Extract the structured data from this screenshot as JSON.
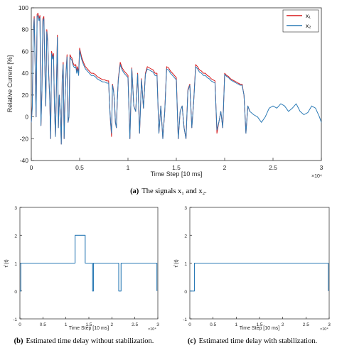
{
  "chart_data": [
    {
      "type": "line",
      "caption_label": "(a)",
      "caption": "The signals x₁ and x₂.",
      "xlabel": "Time Step [10 ms]",
      "ylabel": "Relative Current [%]",
      "x_exponent": "×10⁴",
      "xlim": [
        0,
        3
      ],
      "ylim": [
        -40,
        100
      ],
      "xticks": [
        "0",
        "0.5",
        "1",
        "1.5",
        "2",
        "2.5",
        "3"
      ],
      "yticks": [
        "100",
        "80",
        "60",
        "40",
        "20",
        "0",
        "-20",
        "-40"
      ],
      "legend_position": "top-right",
      "series": [
        {
          "name": "x₁",
          "color": "#d7191c",
          "x": [
            0,
            0.01,
            0.02,
            0.03,
            0.04,
            0.05,
            0.06,
            0.07,
            0.08,
            0.09,
            0.1,
            0.11,
            0.12,
            0.13,
            0.14,
            0.15,
            0.16,
            0.17,
            0.18,
            0.19,
            0.2,
            0.21,
            0.22,
            0.23,
            0.24,
            0.25,
            0.26,
            0.27,
            0.28,
            0.29,
            0.3,
            0.31,
            0.32,
            0.33,
            0.34,
            0.35,
            0.36,
            0.37,
            0.38,
            0.39,
            0.4,
            0.41,
            0.42,
            0.43,
            0.44,
            0.45,
            0.46,
            0.47,
            0.48,
            0.49,
            0.5,
            0.52,
            0.54,
            0.56,
            0.58,
            0.6,
            0.62,
            0.64,
            0.66,
            0.68,
            0.7,
            0.72,
            0.74,
            0.76,
            0.78,
            0.8,
            0.81,
            0.82,
            0.83,
            0.84,
            0.85,
            0.86,
            0.87,
            0.88,
            0.89,
            0.9,
            0.92,
            0.94,
            0.96,
            0.98,
            1.0,
            1.02,
            1.04,
            1.06,
            1.08,
            1.1,
            1.12,
            1.14,
            1.16,
            1.18,
            1.2,
            1.22,
            1.24,
            1.26,
            1.28,
            1.3,
            1.32,
            1.34,
            1.36,
            1.38,
            1.4,
            1.42,
            1.44,
            1.46,
            1.48,
            1.5,
            1.52,
            1.54,
            1.56,
            1.58,
            1.6,
            1.62,
            1.64,
            1.66,
            1.68,
            1.7,
            1.72,
            1.74,
            1.76,
            1.78,
            1.8,
            1.82,
            1.84,
            1.86,
            1.88,
            1.9,
            1.92,
            1.94,
            1.96,
            1.98,
            2.0,
            2.02,
            2.04,
            2.06,
            2.08,
            2.1,
            2.12,
            2.14,
            2.16,
            2.18,
            2.2,
            2.22,
            2.24,
            2.26
          ],
          "values": [
            -5,
            10,
            78,
            92,
            50,
            0,
            94,
            95,
            90,
            93,
            -8,
            25,
            90,
            92,
            50,
            10,
            80,
            70,
            40,
            20,
            -20,
            60,
            55,
            58,
            10,
            -18,
            30,
            75,
            -10,
            20,
            5,
            -25,
            35,
            50,
            -20,
            20,
            43,
            57,
            -5,
            0,
            57,
            55,
            54,
            50,
            48,
            47,
            48,
            42,
            46,
            40,
            63,
            55,
            50,
            46,
            44,
            42,
            40,
            40,
            39,
            37,
            36,
            35,
            34,
            34,
            33,
            33,
            10,
            -5,
            -18,
            30,
            25,
            15,
            -5,
            -10,
            15,
            35,
            50,
            45,
            42,
            40,
            38,
            -20,
            45,
            10,
            5,
            40,
            -15,
            35,
            8,
            40,
            46,
            45,
            44,
            43,
            40,
            40,
            -15,
            10,
            -20,
            5,
            46,
            45,
            42,
            40,
            38,
            36,
            -20,
            5,
            10,
            -10,
            -20,
            25,
            30,
            -10,
            15,
            48,
            46,
            43,
            42,
            40,
            40,
            38,
            37,
            35,
            34,
            33,
            -15,
            -5,
            5,
            -10,
            40,
            38,
            37,
            35,
            34,
            33,
            32,
            31,
            30,
            30,
            20,
            -15,
            10,
            5
          ]
        },
        {
          "name": "x₂",
          "color": "#2c7bb6",
          "x": [
            0,
            0.01,
            0.02,
            0.03,
            0.04,
            0.05,
            0.06,
            0.07,
            0.08,
            0.09,
            0.1,
            0.11,
            0.12,
            0.13,
            0.14,
            0.15,
            0.16,
            0.17,
            0.18,
            0.19,
            0.2,
            0.21,
            0.22,
            0.23,
            0.24,
            0.25,
            0.26,
            0.27,
            0.28,
            0.29,
            0.3,
            0.31,
            0.32,
            0.33,
            0.34,
            0.35,
            0.36,
            0.37,
            0.38,
            0.39,
            0.4,
            0.41,
            0.42,
            0.43,
            0.44,
            0.45,
            0.46,
            0.47,
            0.48,
            0.49,
            0.5,
            0.52,
            0.54,
            0.56,
            0.58,
            0.6,
            0.62,
            0.64,
            0.66,
            0.68,
            0.7,
            0.72,
            0.74,
            0.76,
            0.78,
            0.8,
            0.81,
            0.82,
            0.83,
            0.84,
            0.85,
            0.86,
            0.87,
            0.88,
            0.89,
            0.9,
            0.92,
            0.94,
            0.96,
            0.98,
            1.0,
            1.02,
            1.04,
            1.06,
            1.08,
            1.1,
            1.12,
            1.14,
            1.16,
            1.18,
            1.2,
            1.22,
            1.24,
            1.26,
            1.28,
            1.3,
            1.32,
            1.34,
            1.36,
            1.38,
            1.4,
            1.42,
            1.44,
            1.46,
            1.48,
            1.5,
            1.52,
            1.54,
            1.56,
            1.58,
            1.6,
            1.62,
            1.64,
            1.66,
            1.68,
            1.7,
            1.72,
            1.74,
            1.76,
            1.78,
            1.8,
            1.82,
            1.84,
            1.86,
            1.88,
            1.9,
            1.92,
            1.94,
            1.96,
            1.98,
            2.0,
            2.02,
            2.04,
            2.06,
            2.08,
            2.1,
            2.12,
            2.14,
            2.16,
            2.18,
            2.2,
            2.22,
            2.24,
            2.26,
            2.3,
            2.34,
            2.38,
            2.42,
            2.46,
            2.5,
            2.54,
            2.58,
            2.62,
            2.66,
            2.7,
            2.74,
            2.78,
            2.82,
            2.86,
            2.9,
            2.94,
            2.98,
            3.0
          ],
          "values": [
            -5,
            8,
            76,
            90,
            48,
            0,
            92,
            93,
            88,
            91,
            -8,
            24,
            88,
            90,
            48,
            10,
            78,
            68,
            38,
            20,
            -20,
            58,
            53,
            56,
            10,
            -18,
            29,
            73,
            -10,
            20,
            5,
            -25,
            34,
            48,
            -20,
            20,
            41,
            55,
            -5,
            0,
            55,
            53,
            52,
            48,
            46,
            45,
            46,
            40,
            44,
            38,
            61,
            53,
            48,
            44,
            42,
            40,
            38,
            38,
            37,
            35,
            34,
            33,
            32,
            32,
            31,
            31,
            10,
            -5,
            -15,
            29,
            24,
            15,
            -5,
            -10,
            15,
            34,
            48,
            43,
            40,
            38,
            36,
            -20,
            44,
            10,
            5,
            39,
            -15,
            34,
            8,
            39,
            44,
            43,
            42,
            41,
            38,
            38,
            -15,
            10,
            -20,
            5,
            44,
            43,
            40,
            38,
            36,
            34,
            -20,
            5,
            10,
            -10,
            -20,
            24,
            29,
            -10,
            15,
            46,
            44,
            41,
            40,
            38,
            38,
            36,
            35,
            33,
            32,
            31,
            -12,
            -5,
            5,
            -10,
            39,
            37,
            36,
            34,
            33,
            32,
            31,
            30,
            29,
            29,
            20,
            -15,
            10,
            5,
            2,
            0,
            -5,
            0,
            8,
            10,
            8,
            12,
            10,
            5,
            8,
            12,
            5,
            2,
            4,
            10,
            8,
            0,
            -5
          ]
        }
      ]
    },
    {
      "type": "line",
      "caption_label": "(b)",
      "caption": "Estimated time delay without stabilization.",
      "xlabel": "Time Step [10 ms]",
      "ylabel": "τ̂ (t)",
      "x_exponent": "×10⁴",
      "xlim": [
        0,
        3
      ],
      "ylim": [
        -1,
        3
      ],
      "xticks": [
        "0",
        "0.5",
        "1",
        "1.5",
        "2",
        "2.5",
        "3"
      ],
      "yticks": [
        "3",
        "2",
        "1",
        "0",
        "-1"
      ],
      "series": [
        {
          "color": "#2c7bb6",
          "x": [
            0,
            0.02,
            0.02,
            1.2,
            1.2,
            1.42,
            1.42,
            1.58,
            1.58,
            1.6,
            1.6,
            1.62,
            1.62,
            2.15,
            2.15,
            2.2,
            2.2,
            2.98,
            2.98
          ],
          "values": [
            0,
            0,
            1,
            1,
            2,
            2,
            1,
            1,
            0,
            0,
            1,
            1,
            1,
            1,
            0,
            0,
            1,
            1,
            0
          ]
        }
      ]
    },
    {
      "type": "line",
      "caption_label": "(c)",
      "caption": "Estimated time delay with stabilization.",
      "xlabel": "Time Step [10 ms]",
      "ylabel": "τ̂ (t)",
      "x_exponent": "×10⁴",
      "xlim": [
        0,
        3
      ],
      "ylim": [
        -1,
        3
      ],
      "xticks": [
        "0",
        "0.5",
        "1",
        "1.5",
        "2",
        "2.5",
        "3"
      ],
      "yticks": [
        "3",
        "2",
        "1",
        "0",
        "-1"
      ],
      "series": [
        {
          "color": "#2c7bb6",
          "x": [
            0,
            0.1,
            0.1,
            2.98,
            2.98
          ],
          "values": [
            0,
            0,
            1,
            1,
            0
          ]
        }
      ]
    }
  ]
}
